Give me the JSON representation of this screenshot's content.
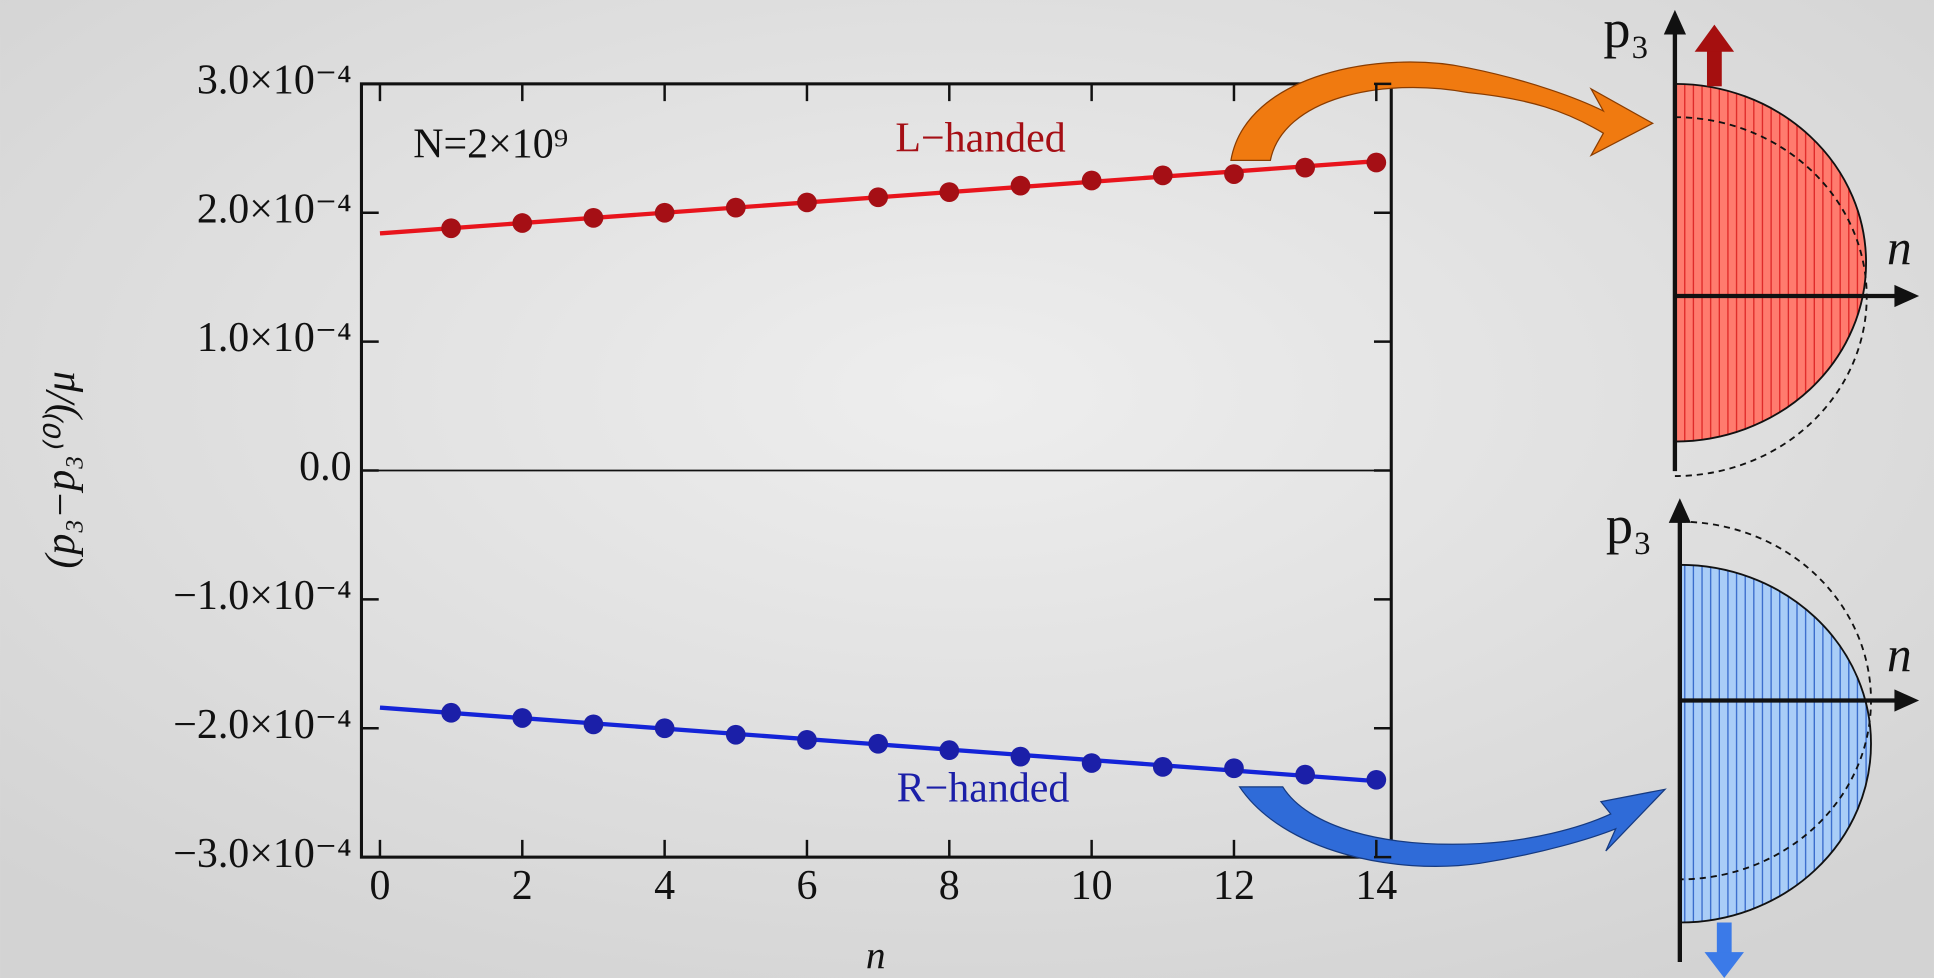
{
  "chart_data": {
    "type": "scatter",
    "xlabel": "n",
    "ylabel": "(p₃−p₃⁽⁰⁾)/μ",
    "annotation": "N=2×10⁹",
    "x": [
      1,
      2,
      3,
      4,
      5,
      6,
      7,
      8,
      9,
      10,
      11,
      12,
      13,
      14
    ],
    "series": [
      {
        "name": "L−handed",
        "color": "#a50f15",
        "values": [
          0.000188,
          0.000192,
          0.000196,
          0.0002,
          0.000204,
          0.000208,
          0.000212,
          0.000216,
          0.000221,
          0.000225,
          0.000229,
          0.00023,
          0.000235,
          0.000239
        ],
        "line_color": "#e8141c",
        "line_x": [
          0,
          14
        ],
        "line_values": [
          0.000184,
          0.00024
        ]
      },
      {
        "name": "R−handed",
        "color": "#1b1fa8",
        "values": [
          -0.000188,
          -0.000192,
          -0.000197,
          -0.0002,
          -0.000205,
          -0.000209,
          -0.000212,
          -0.000217,
          -0.000222,
          -0.000227,
          -0.00023,
          -0.000231,
          -0.000236,
          -0.00024
        ],
        "line_color": "#1424d8",
        "line_x": [
          0,
          14
        ],
        "line_values": [
          -0.000184,
          -0.000241
        ]
      }
    ],
    "xlim": [
      -0.26,
      14.21
    ],
    "ylim": [
      -0.0003,
      0.0003
    ],
    "xticks": [
      0,
      2,
      4,
      6,
      8,
      10,
      12,
      14
    ],
    "yticks": [
      {
        "value": 0.0003,
        "label": "3.0×10⁻⁴"
      },
      {
        "value": 0.0002,
        "label": "2.0×10⁻⁴"
      },
      {
        "value": 0.0001,
        "label": "1.0×10⁻⁴"
      },
      {
        "value": 0,
        "label": "0.0"
      },
      {
        "value": -0.0001,
        "label": "−1.0×10⁻⁴"
      },
      {
        "value": -0.0002,
        "label": "−2.0×10⁻⁴"
      },
      {
        "value": -0.0003,
        "label": "−3.0×10⁻⁴"
      }
    ],
    "zero_line": true,
    "side_labels": [
      "p₃",
      "n",
      "p₃",
      "n"
    ]
  }
}
